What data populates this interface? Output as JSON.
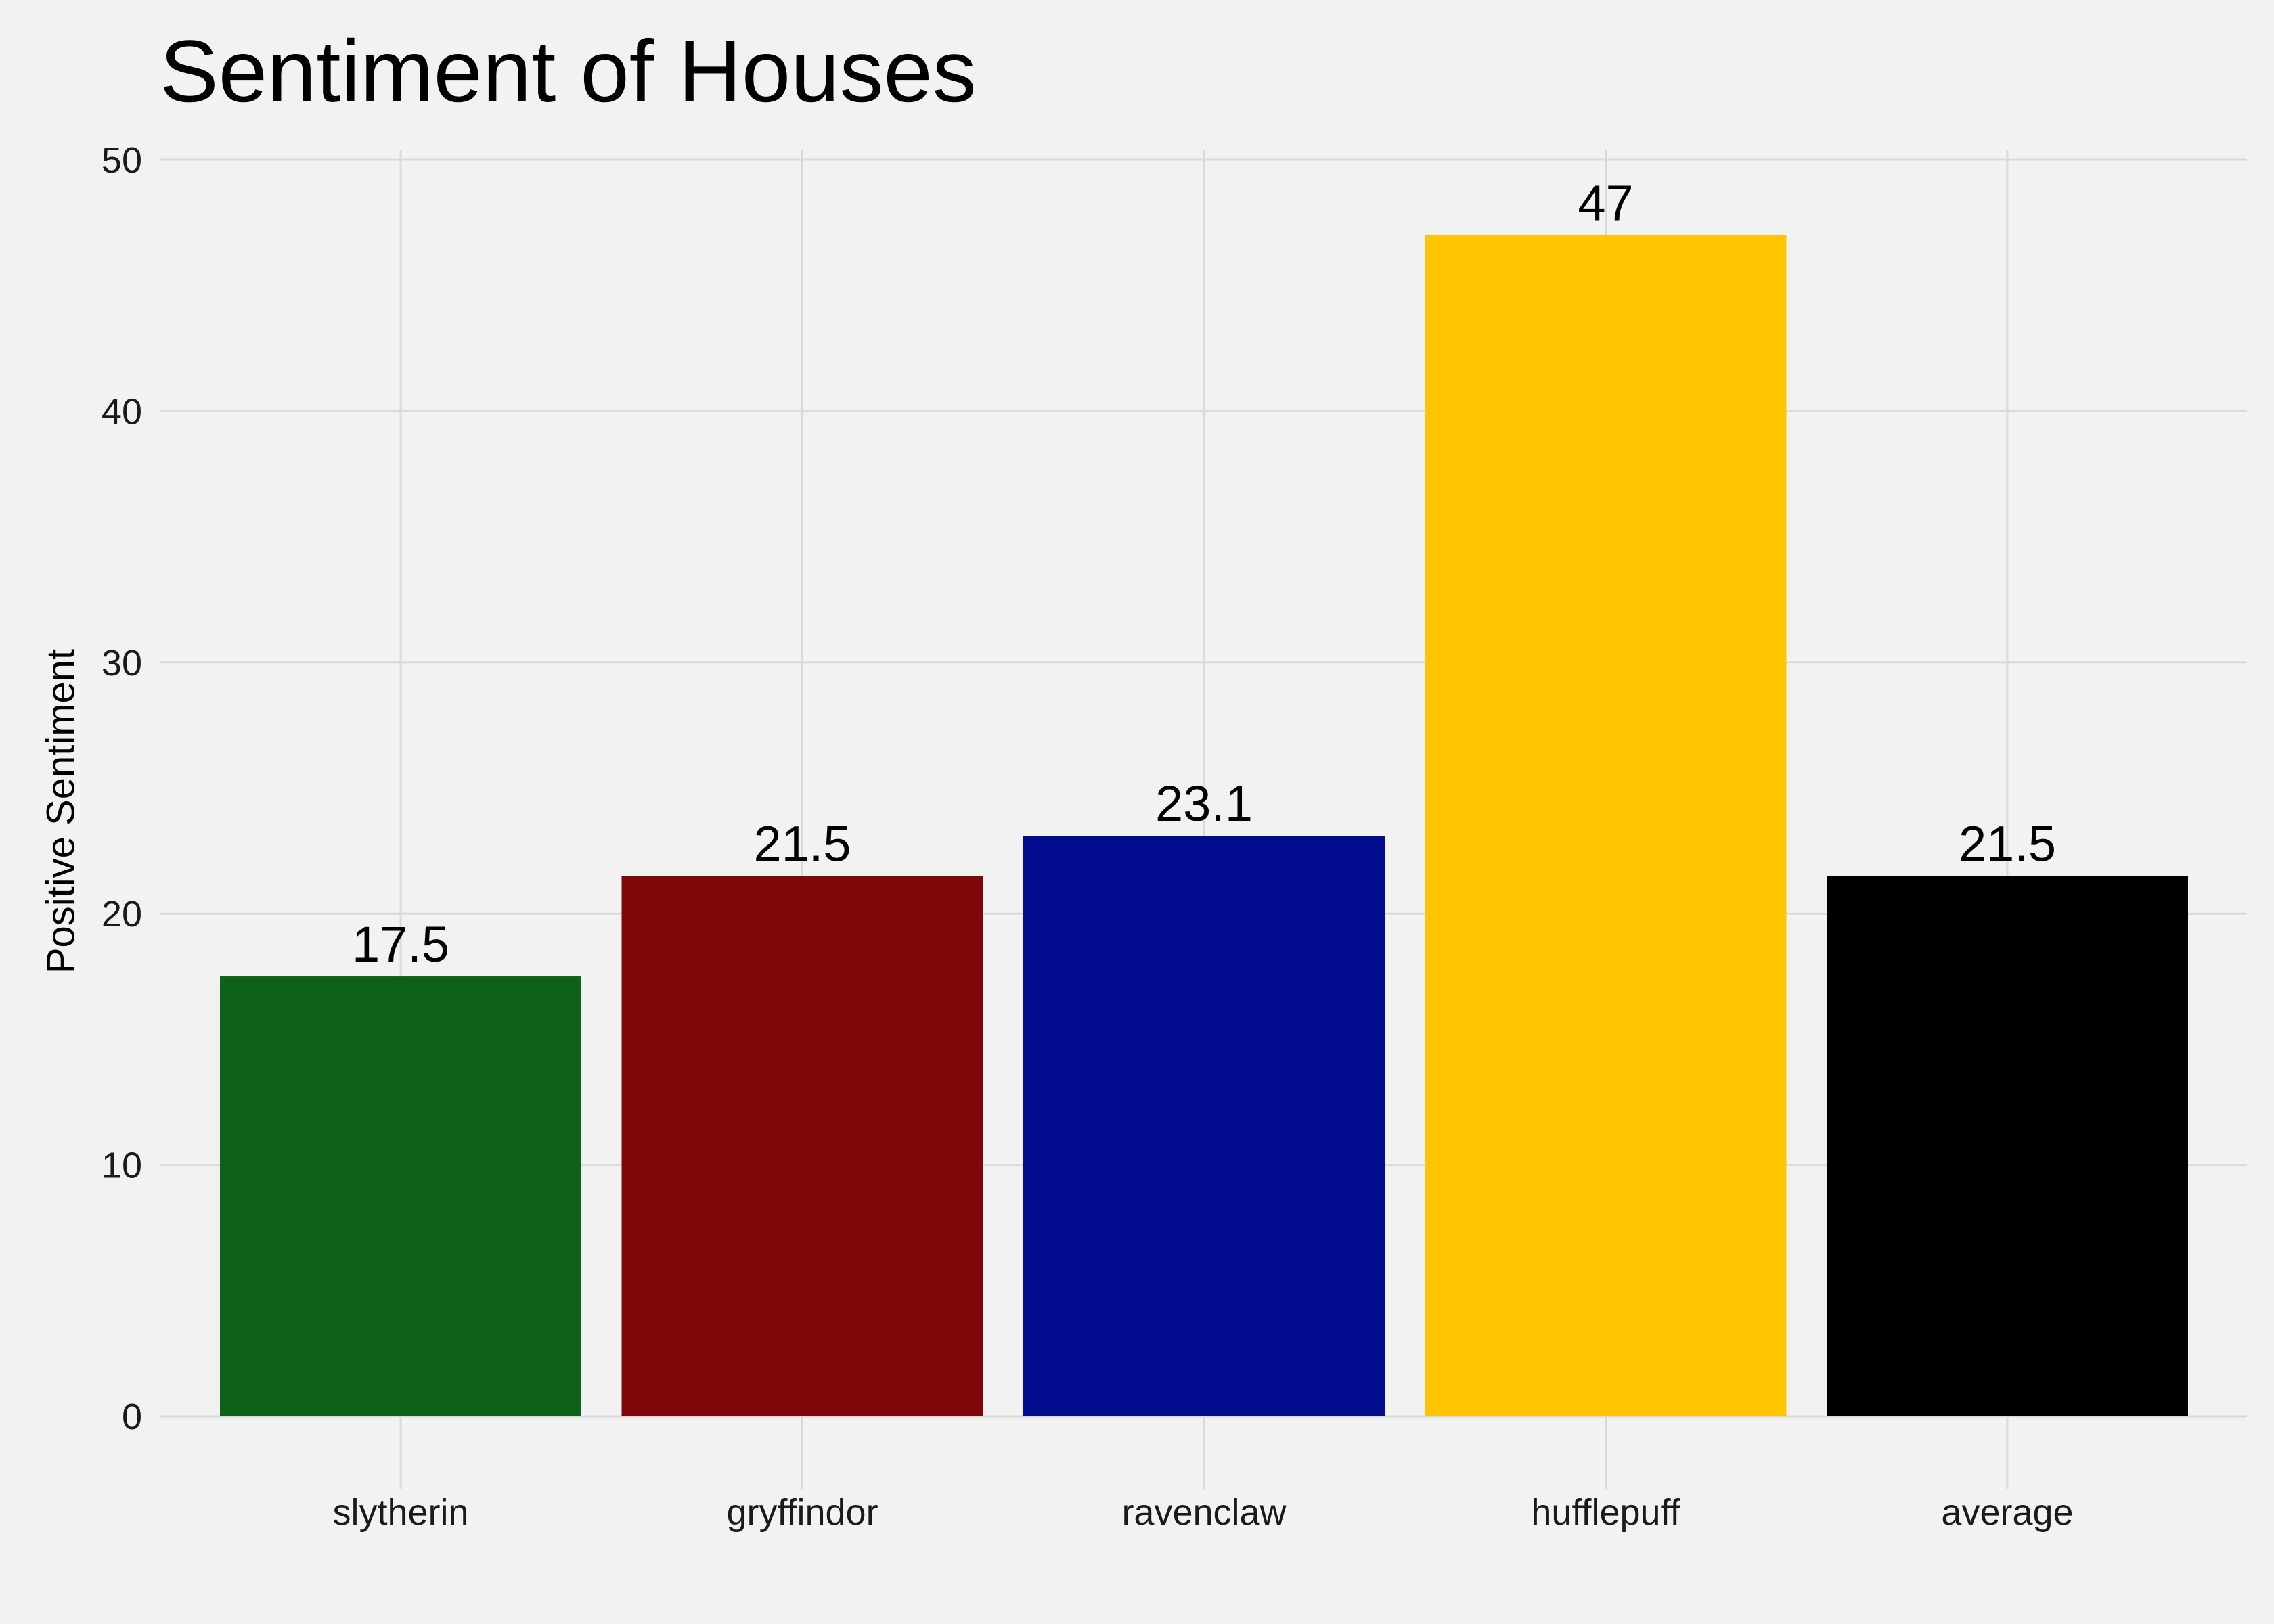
{
  "chart_data": {
    "type": "bar",
    "title": "Sentiment of Houses",
    "xlabel": "",
    "ylabel": "Positive Sentiment",
    "categories": [
      "slytherin",
      "gryffindor",
      "ravenclaw",
      "hufflepuff",
      "average"
    ],
    "values": [
      17.5,
      21.5,
      23.1,
      47,
      21.5
    ],
    "data_labels": [
      "17.5",
      "21.5",
      "23.1",
      "47",
      "21.5"
    ],
    "colors": [
      "#0e6119",
      "#7d0709",
      "#000b8d",
      "#ffc500",
      "#000000"
    ],
    "ylim": [
      0,
      50
    ],
    "yticks": [
      0,
      10,
      20,
      30,
      40,
      50
    ],
    "ytick_labels": [
      "0",
      "10",
      "20",
      "30",
      "40",
      "50"
    ],
    "grid": true,
    "legend": "none"
  }
}
